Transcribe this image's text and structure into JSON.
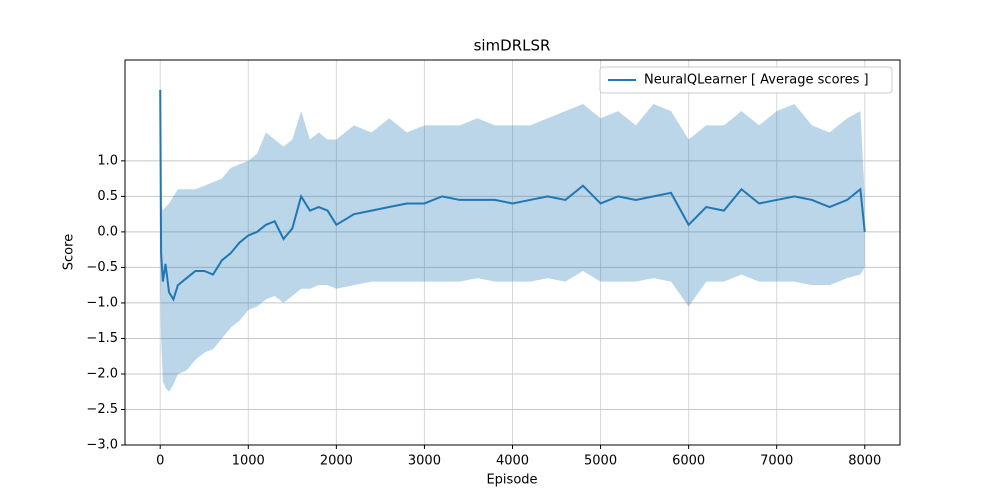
{
  "chart_data": {
    "type": "line",
    "title": "simDRLSR",
    "xlabel": "Episode",
    "ylabel": "Score",
    "x": [
      0,
      10,
      30,
      60,
      100,
      150,
      200,
      300,
      400,
      500,
      600,
      700,
      800,
      900,
      1000,
      1100,
      1200,
      1300,
      1400,
      1500,
      1600,
      1700,
      1800,
      1900,
      2000,
      2200,
      2400,
      2600,
      2800,
      3000,
      3200,
      3400,
      3600,
      3800,
      4000,
      4200,
      4400,
      4600,
      4800,
      5000,
      5200,
      5400,
      5600,
      5800,
      6000,
      6200,
      6400,
      6600,
      6800,
      7000,
      7200,
      7400,
      7600,
      7800,
      7950,
      8000
    ],
    "series": [
      {
        "name": "NeuralQLearner [ Average scores ]",
        "color": "#1f77b4",
        "band_color": "#1f77b4",
        "values": [
          2.0,
          -0.3,
          -0.7,
          -0.45,
          -0.85,
          -0.95,
          -0.75,
          -0.65,
          -0.55,
          -0.55,
          -0.6,
          -0.4,
          -0.3,
          -0.15,
          -0.05,
          0.0,
          0.1,
          0.15,
          -0.1,
          0.05,
          0.5,
          0.3,
          0.35,
          0.3,
          0.1,
          0.25,
          0.3,
          0.35,
          0.4,
          0.4,
          0.5,
          0.45,
          0.45,
          0.45,
          0.4,
          0.45,
          0.5,
          0.45,
          0.65,
          0.4,
          0.5,
          0.45,
          0.5,
          0.55,
          0.1,
          0.35,
          0.3,
          0.6,
          0.4,
          0.45,
          0.5,
          0.45,
          0.35,
          0.45,
          0.6,
          0.0
        ],
        "upper": [
          2.0,
          0.4,
          0.3,
          0.35,
          0.4,
          0.5,
          0.6,
          0.6,
          0.6,
          0.65,
          0.7,
          0.75,
          0.9,
          0.95,
          1.0,
          1.1,
          1.4,
          1.3,
          1.2,
          1.3,
          1.7,
          1.3,
          1.4,
          1.3,
          1.3,
          1.5,
          1.4,
          1.6,
          1.4,
          1.5,
          1.5,
          1.5,
          1.6,
          1.5,
          1.5,
          1.5,
          1.6,
          1.7,
          1.8,
          1.6,
          1.7,
          1.5,
          1.8,
          1.7,
          1.3,
          1.5,
          1.5,
          1.7,
          1.5,
          1.7,
          1.8,
          1.5,
          1.4,
          1.6,
          1.7,
          0.5
        ],
        "lower": [
          -0.7,
          -1.5,
          -2.1,
          -2.2,
          -2.25,
          -2.15,
          -2.0,
          -1.95,
          -1.8,
          -1.7,
          -1.65,
          -1.5,
          -1.35,
          -1.25,
          -1.1,
          -1.05,
          -0.95,
          -0.9,
          -1.0,
          -0.9,
          -0.8,
          -0.8,
          -0.75,
          -0.75,
          -0.8,
          -0.75,
          -0.7,
          -0.7,
          -0.7,
          -0.7,
          -0.7,
          -0.7,
          -0.65,
          -0.7,
          -0.7,
          -0.7,
          -0.65,
          -0.7,
          -0.55,
          -0.7,
          -0.7,
          -0.7,
          -0.65,
          -0.7,
          -1.05,
          -0.7,
          -0.7,
          -0.6,
          -0.7,
          -0.7,
          -0.7,
          -0.75,
          -0.75,
          -0.65,
          -0.6,
          -0.5
        ]
      }
    ],
    "xlim": [
      -400,
      8400
    ],
    "ylim": [
      -3.0,
      2.42
    ],
    "xticks": [
      0,
      1000,
      2000,
      3000,
      4000,
      5000,
      6000,
      7000,
      8000
    ],
    "yticks": [
      {
        "value": -3.0,
        "label": "−3.0"
      },
      {
        "value": -2.5,
        "label": "−2.5"
      },
      {
        "value": -2.0,
        "label": "−2.0"
      },
      {
        "value": -1.5,
        "label": "−1.5"
      },
      {
        "value": -1.0,
        "label": "−1.0"
      },
      {
        "value": -0.5,
        "label": "−0.5"
      },
      {
        "value": 0.0,
        "label": "0.0"
      },
      {
        "value": 0.5,
        "label": "0.5"
      },
      {
        "value": 1.0,
        "label": "1.0"
      }
    ],
    "grid": true,
    "legend": "upper right"
  }
}
